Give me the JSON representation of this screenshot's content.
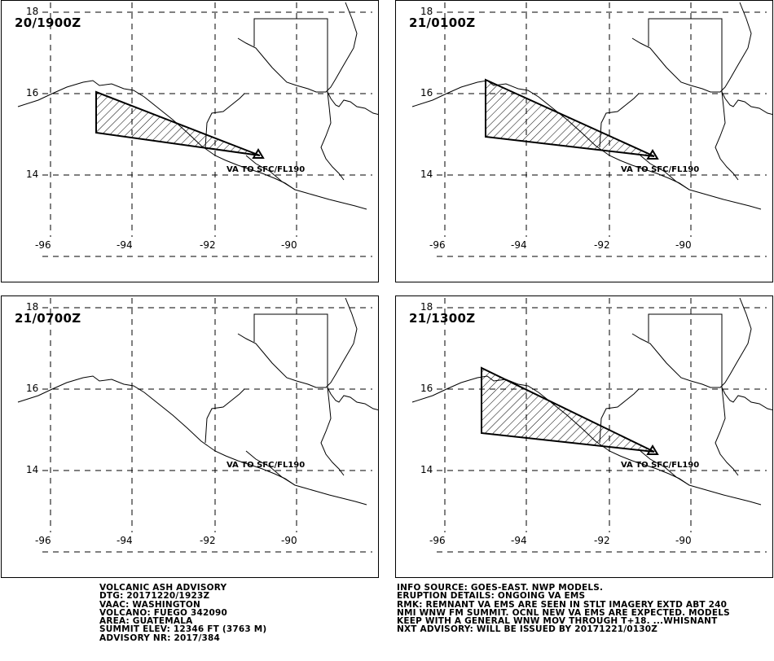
{
  "panels": [
    {
      "time": "20/1900Z",
      "label": "VA TO SFC/FL190"
    },
    {
      "time": "21/0100Z",
      "label": "VA TO SFC/FL190"
    },
    {
      "time": "21/0700Z",
      "label": "VA TO SFC/FL190"
    },
    {
      "time": "21/1300Z",
      "label": "VA TO SFC/FL190"
    }
  ],
  "axes": {
    "lat_labels": [
      "18",
      "16",
      "14"
    ],
    "lon_labels": [
      "-96",
      "-94",
      "-92",
      "-90"
    ]
  },
  "advisory": {
    "left": [
      "VOLCANIC ASH ADVISORY",
      "DTG: 20171220/1923Z",
      "VAAC: WASHINGTON",
      "VOLCANO: FUEGO 342090",
      "AREA: GUATEMALA",
      "SUMMIT ELEV: 12346 FT (3763 M)",
      "ADVISORY NR: 2017/384"
    ],
    "right": [
      "INFO SOURCE: GOES-EAST. NWP MODELS.",
      "ERUPTION DETAILS: ONGOING VA EMS",
      "RMK: REMNANT VA EMS ARE SEEN IN STLT IMAGERY EXTD ABT 240",
      "NMI WNW FM SUMMIT. OCNL NEW VA EMS ARE EXPECTED. MODELS",
      "KEEP WITH A GENERAL WNW MOV THROUGH T+18. ...WHISNANT",
      "NXT ADVISORY: WILL BE ISSUED BY 20171221/0130Z"
    ]
  }
}
